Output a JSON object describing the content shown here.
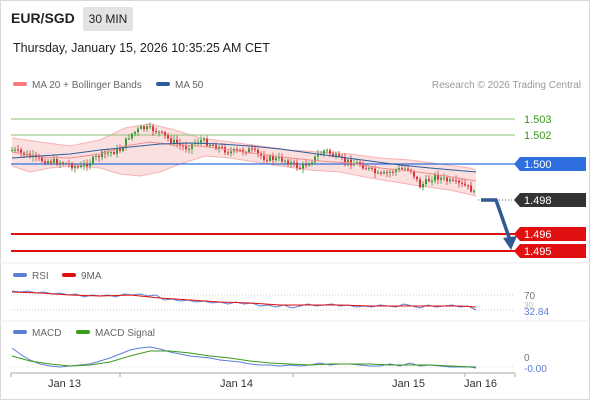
{
  "header": {
    "symbol": "EUR/SGD",
    "timeframe": "30 MIN",
    "timestamp": "Thursday, January 15, 2026 10:35:25 AM CET"
  },
  "main_legend": [
    {
      "label": "MA 20 + Bollinger Bands",
      "color": "#f47c7c"
    },
    {
      "label": "MA 50",
      "color": "#2f5d9c"
    }
  ],
  "credit": "Research © 2026 Trading Central",
  "colors": {
    "up": "#3a9a3a",
    "down": "#d9323a",
    "resistance": "#8bc37a",
    "pivot": "#2f6fe0",
    "support": "#e01010",
    "current": "#333333",
    "arrow": "#2f5a96"
  },
  "price_labels": [
    {
      "value": "1.503",
      "kind": "resistance"
    },
    {
      "value": "1.502",
      "kind": "resistance"
    },
    {
      "value": "1.500",
      "kind": "pivot"
    },
    {
      "value": "1.498",
      "kind": "current"
    },
    {
      "value": "1.496",
      "kind": "support"
    },
    {
      "value": "1.495",
      "kind": "support"
    }
  ],
  "rsi_panel": {
    "legend": [
      {
        "label": "RSI",
        "color": "#5b7fd4"
      },
      {
        "label": "9MA",
        "color": "#e01010"
      }
    ],
    "levels": [
      "70",
      "30"
    ],
    "value": "32.84"
  },
  "macd_panel": {
    "legend": [
      {
        "label": "MACD",
        "color": "#5b7fd4"
      },
      {
        "label": "MACD Signal",
        "color": "#3a9a1a"
      }
    ],
    "zero_label": "0",
    "value": "-0.00"
  },
  "x_axis": {
    "labels": [
      "Jan 13",
      "Jan 14",
      "Jan 15",
      "Jan 16"
    ]
  }
}
